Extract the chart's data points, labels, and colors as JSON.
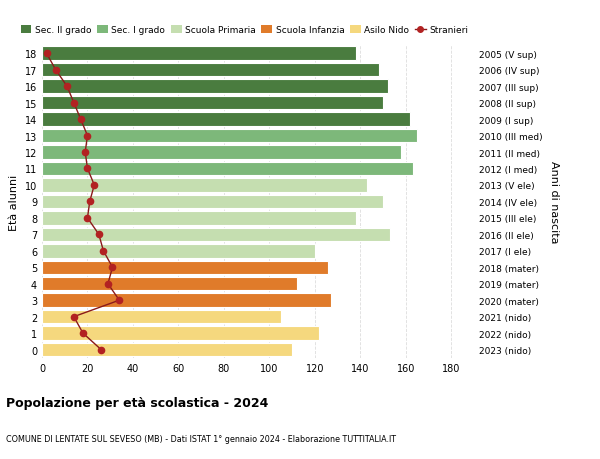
{
  "ages": [
    18,
    17,
    16,
    15,
    14,
    13,
    12,
    11,
    10,
    9,
    8,
    7,
    6,
    5,
    4,
    3,
    2,
    1,
    0
  ],
  "right_labels": [
    "2005 (V sup)",
    "2006 (IV sup)",
    "2007 (III sup)",
    "2008 (II sup)",
    "2009 (I sup)",
    "2010 (III med)",
    "2011 (II med)",
    "2012 (I med)",
    "2013 (V ele)",
    "2014 (IV ele)",
    "2015 (III ele)",
    "2016 (II ele)",
    "2017 (I ele)",
    "2018 (mater)",
    "2019 (mater)",
    "2020 (mater)",
    "2021 (nido)",
    "2022 (nido)",
    "2023 (nido)"
  ],
  "bar_values": [
    138,
    148,
    152,
    150,
    162,
    165,
    158,
    163,
    143,
    150,
    138,
    153,
    120,
    126,
    112,
    127,
    105,
    122,
    110
  ],
  "stranieri_values": [
    2,
    6,
    11,
    14,
    17,
    20,
    19,
    20,
    23,
    21,
    20,
    25,
    27,
    31,
    29,
    34,
    14,
    18,
    26
  ],
  "bar_colors": [
    "#4a7c3f",
    "#4a7c3f",
    "#4a7c3f",
    "#4a7c3f",
    "#4a7c3f",
    "#7db87a",
    "#7db87a",
    "#7db87a",
    "#c5deb0",
    "#c5deb0",
    "#c5deb0",
    "#c5deb0",
    "#c5deb0",
    "#e07b2a",
    "#e07b2a",
    "#e07b2a",
    "#f5d87e",
    "#f5d87e",
    "#f5d87e"
  ],
  "legend_labels": [
    "Sec. II grado",
    "Sec. I grado",
    "Scuola Primaria",
    "Scuola Infanzia",
    "Asilo Nido",
    "Stranieri"
  ],
  "legend_colors": [
    "#4a7c3f",
    "#7db87a",
    "#c5deb0",
    "#e07b2a",
    "#f5d87e",
    "#b22222"
  ],
  "title": "Popolazione per età scolastica - 2024",
  "subtitle": "COMUNE DI LENTATE SUL SEVESO (MB) - Dati ISTAT 1° gennaio 2024 - Elaborazione TUTTITALIA.IT",
  "ylabel_left": "Età alunni",
  "ylabel_right": "Anni di nascita",
  "xlim": [
    0,
    190
  ],
  "xticks": [
    0,
    20,
    40,
    60,
    80,
    100,
    120,
    140,
    160,
    180
  ],
  "stranieri_line_color": "#8b1a1a",
  "stranieri_marker_color": "#b22222",
  "bg_color": "#ffffff",
  "grid_color": "#dddddd"
}
